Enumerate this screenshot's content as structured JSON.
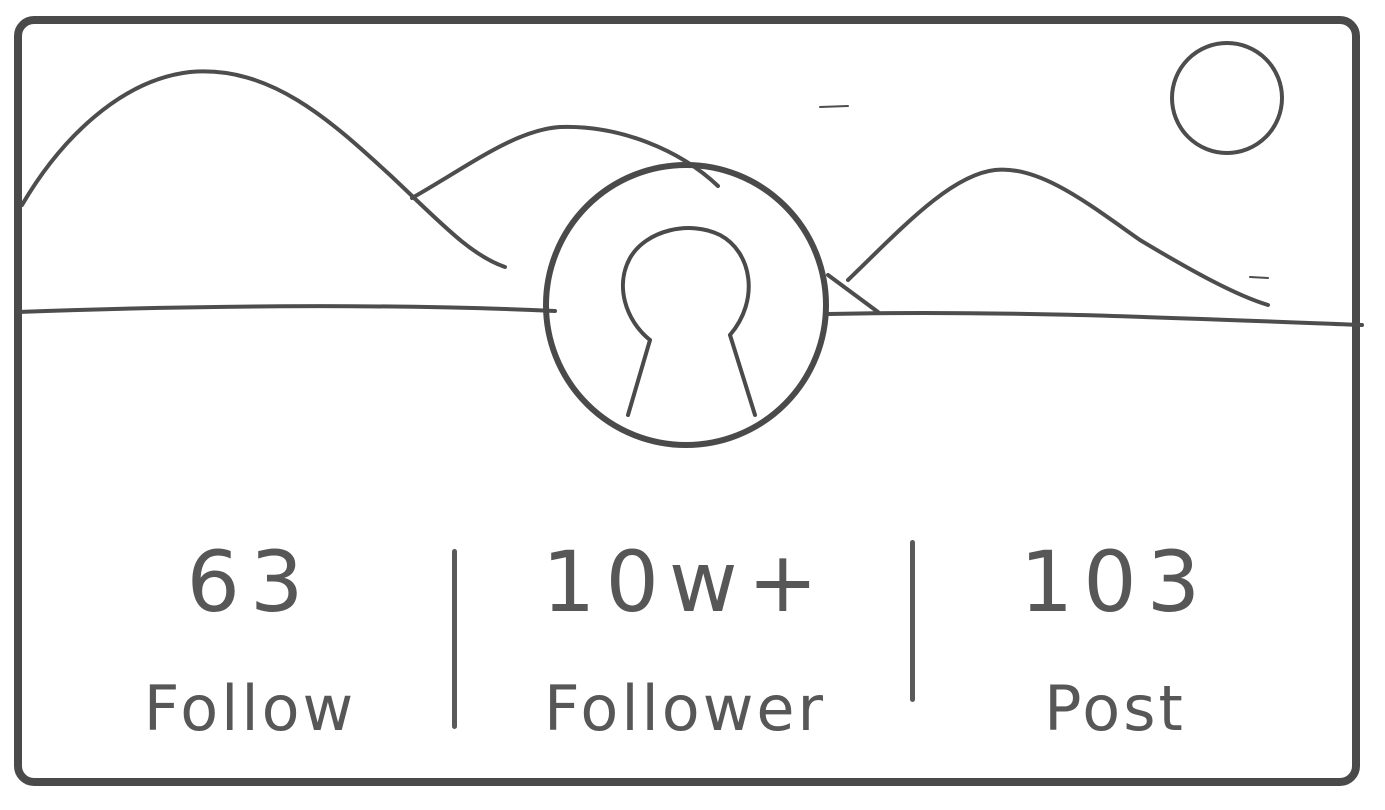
{
  "profile_card": {
    "stats": [
      {
        "value": "63",
        "label": "Follow"
      },
      {
        "value": "10w+",
        "label": "Follower"
      },
      {
        "value": "103",
        "label": "Post"
      }
    ]
  },
  "icons": {
    "cover": "landscape-mountains-sun-icon",
    "avatar": "user-silhouette-icon"
  },
  "colors": {
    "ink": "#4a4a4a",
    "text": "#575757",
    "background": "#ffffff"
  }
}
